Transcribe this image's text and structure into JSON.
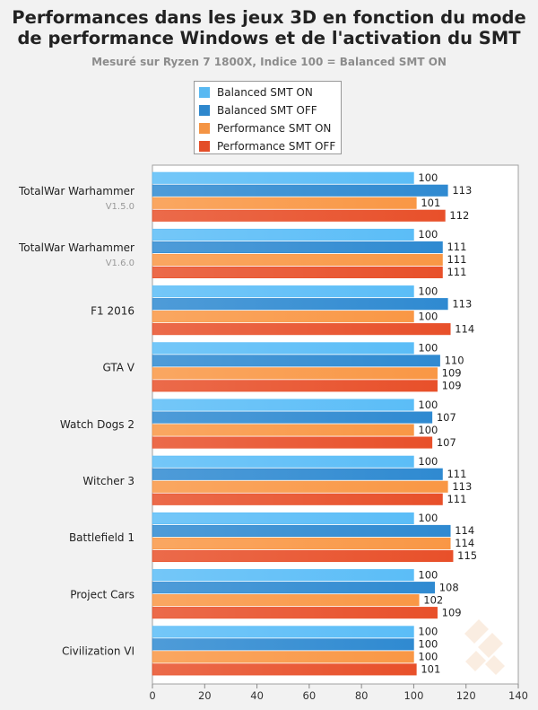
{
  "title_line1": "Performances dans les jeux 3D en fonction du mode",
  "title_line2": "de performance Windows et de l'activation du SMT",
  "subtitle": "Mesuré sur Ryzen 7 1800X, Indice 100 = Balanced SMT ON",
  "colors": {
    "balanced_smt_on": "#5bbdf7",
    "balanced_smt_off": "#2f8ad1",
    "performance_smt_on": "#f99745",
    "performance_smt_off": "#e8502a"
  },
  "chart_data": {
    "type": "bar",
    "orientation": "horizontal",
    "categories": [
      {
        "name": "TotalWar Warhammer",
        "sub": "V1.5.0"
      },
      {
        "name": "TotalWar Warhammer",
        "sub": "V1.6.0"
      },
      {
        "name": "F1 2016",
        "sub": ""
      },
      {
        "name": "GTA V",
        "sub": ""
      },
      {
        "name": "Watch Dogs 2",
        "sub": ""
      },
      {
        "name": "Witcher 3",
        "sub": ""
      },
      {
        "name": "Battlefield 1",
        "sub": ""
      },
      {
        "name": "Project Cars",
        "sub": ""
      },
      {
        "name": "Civilization VI",
        "sub": ""
      }
    ],
    "series": [
      {
        "name": "Balanced SMT ON",
        "color": "#5bbdf7",
        "values": [
          100,
          100,
          100,
          100,
          100,
          100,
          100,
          100,
          100
        ]
      },
      {
        "name": "Balanced SMT OFF",
        "color": "#2f8ad1",
        "values": [
          113,
          111,
          113,
          110,
          107,
          111,
          114,
          108,
          100
        ]
      },
      {
        "name": "Performance SMT ON",
        "color": "#f99745",
        "values": [
          101,
          111,
          100,
          109,
          100,
          113,
          114,
          102,
          100
        ]
      },
      {
        "name": "Performance SMT OFF",
        "color": "#e8502a",
        "values": [
          112,
          111,
          114,
          109,
          107,
          111,
          115,
          109,
          101
        ]
      }
    ],
    "xlim": [
      0,
      140
    ],
    "xticks": [
      0,
      20,
      40,
      60,
      80,
      100,
      120,
      140
    ],
    "grid": false,
    "legend_position": "top"
  }
}
